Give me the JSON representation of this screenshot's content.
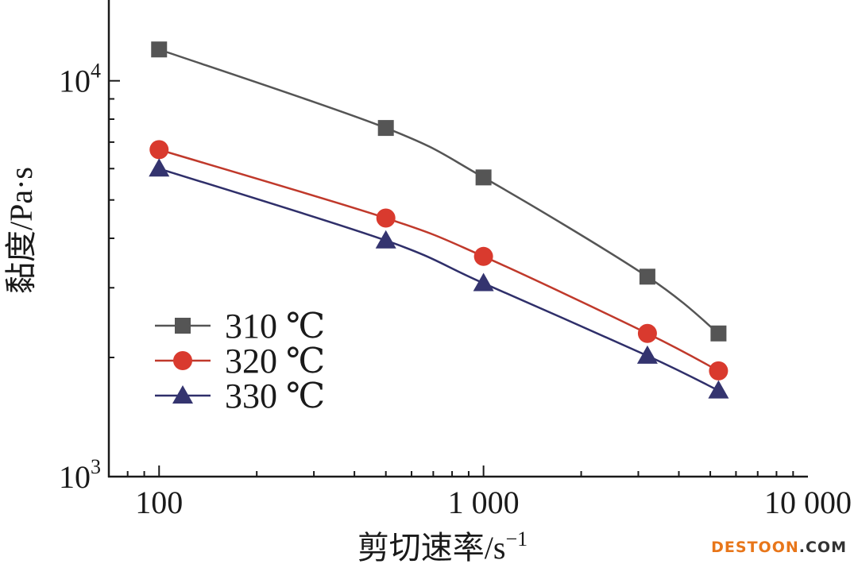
{
  "chart_data": {
    "type": "line",
    "xscale": "log",
    "yscale": "log",
    "xlim": [
      70,
      10000
    ],
    "ylim": [
      1000,
      16000
    ],
    "xlabel": "剪切速率/s",
    "xlabel_unit_sup": "−1",
    "ylabel": "黏度/Pa·s",
    "x_ticks": [
      {
        "value": 100,
        "label": "100"
      },
      {
        "value": 1000,
        "label": "1 000"
      },
      {
        "value": 10000,
        "label": "10 000"
      }
    ],
    "y_ticks": [
      {
        "value": 1000,
        "base": "10",
        "exp": "3"
      },
      {
        "value": 10000,
        "base": "10",
        "exp": "4"
      }
    ],
    "grid": false,
    "legend_position": "left",
    "series": [
      {
        "name": "310 ℃",
        "marker": "square",
        "color": "#555555",
        "line_color": "#555555",
        "points": [
          [
            100,
            12000
          ],
          [
            500,
            7600
          ],
          [
            1000,
            5700
          ],
          [
            3200,
            3200
          ],
          [
            5300,
            2300
          ]
        ]
      },
      {
        "name": "320 ℃",
        "marker": "circle",
        "color": "#d93a2e",
        "line_color": "#c0392b",
        "points": [
          [
            100,
            6700
          ],
          [
            500,
            4500
          ],
          [
            1000,
            3600
          ],
          [
            3200,
            2300
          ],
          [
            5300,
            1850
          ]
        ]
      },
      {
        "name": "330 ℃",
        "marker": "triangle",
        "color": "#34346f",
        "line_color": "#2f2f6a",
        "points": [
          [
            100,
            6000
          ],
          [
            500,
            3950
          ],
          [
            1000,
            3080
          ],
          [
            3200,
            2020
          ],
          [
            5300,
            1650
          ]
        ]
      }
    ]
  },
  "watermark": {
    "main": "DESTOON",
    "tld": ".COM"
  }
}
